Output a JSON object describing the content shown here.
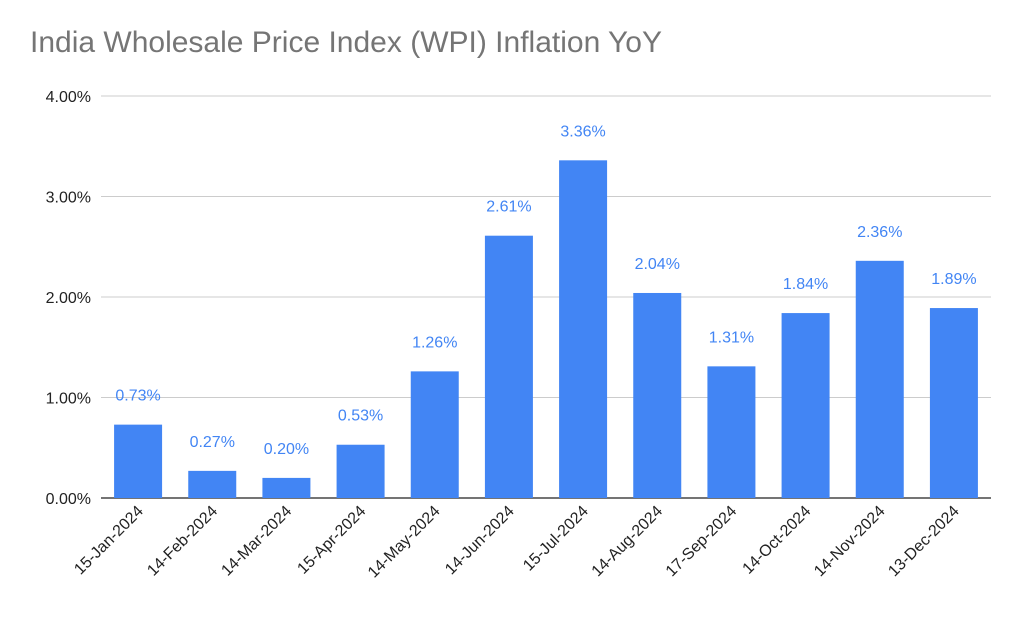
{
  "chart_data": {
    "type": "bar",
    "title": "India Wholesale Price Index (WPI) Inflation YoY",
    "categories": [
      "15-Jan-2024",
      "14-Feb-2024",
      "14-Mar-2024",
      "15-Apr-2024",
      "14-May-2024",
      "14-Jun-2024",
      "15-Jul-2024",
      "14-Aug-2024",
      "17-Sep-2024",
      "14-Oct-2024",
      "14-Nov-2024",
      "13-Dec-2024"
    ],
    "values": [
      0.73,
      0.27,
      0.2,
      0.53,
      1.26,
      2.61,
      3.36,
      2.04,
      1.31,
      1.84,
      2.36,
      1.89
    ],
    "data_labels": [
      "0.73%",
      "0.27%",
      "0.20%",
      "0.53%",
      "1.26%",
      "2.61%",
      "3.36%",
      "2.04%",
      "1.31%",
      "1.84%",
      "2.36%",
      "1.89%"
    ],
    "y_ticks": [
      0,
      1,
      2,
      3,
      4
    ],
    "y_tick_labels": [
      "0.00%",
      "1.00%",
      "2.00%",
      "3.00%",
      "4.00%"
    ],
    "ylim": [
      0,
      4
    ],
    "xlabel": "",
    "ylabel": "",
    "grid": true,
    "legend": "none",
    "colors": {
      "bar": "#4285f4",
      "label": "#4285f4",
      "grid": "#cccccc",
      "axis": "#222222",
      "title": "#757575"
    }
  }
}
